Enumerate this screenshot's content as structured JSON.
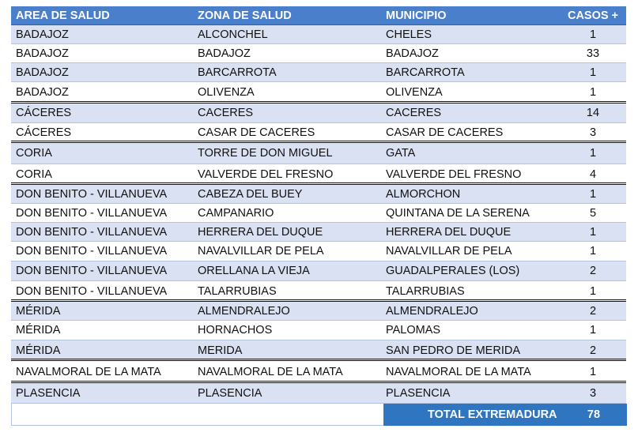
{
  "headers": [
    "AREA DE SALUD",
    "ZONA DE SALUD",
    "MUNICIPIO",
    "CASOS +"
  ],
  "rows": [
    {
      "area": "BADAJOZ",
      "zona": "ALCONCHEL",
      "municipio": "CHELES",
      "casos": "1"
    },
    {
      "area": "BADAJOZ",
      "zona": "BADAJOZ",
      "municipio": "BADAJOZ",
      "casos": "33"
    },
    {
      "area": "BADAJOZ",
      "zona": "BARCARROTA",
      "municipio": "BARCARROTA",
      "casos": "1"
    },
    {
      "area": "BADAJOZ",
      "zona": "OLIVENZA",
      "municipio": "OLIVENZA",
      "casos": "1"
    },
    {
      "area": "CÁCERES",
      "zona": "CACERES",
      "municipio": "CACERES",
      "casos": "14"
    },
    {
      "area": "CÁCERES",
      "zona": "CASAR DE CACERES",
      "municipio": "CASAR DE CACERES",
      "casos": "3"
    },
    {
      "area": "CORIA",
      "zona": "TORRE DE DON MIGUEL",
      "municipio": "GATA",
      "casos": "1"
    },
    {
      "area": "CORIA",
      "zona": "VALVERDE DEL FRESNO",
      "municipio": "VALVERDE DEL FRESNO",
      "casos": "4"
    },
    {
      "area": "DON BENITO - VILLANUEVA",
      "zona": "CABEZA DEL BUEY",
      "municipio": "ALMORCHON",
      "casos": "1"
    },
    {
      "area": "DON BENITO - VILLANUEVA",
      "zona": "CAMPANARIO",
      "municipio": "QUINTANA DE LA SERENA",
      "casos": "5"
    },
    {
      "area": "DON BENITO - VILLANUEVA",
      "zona": "HERRERA DEL DUQUE",
      "municipio": "HERRERA DEL DUQUE",
      "casos": "1"
    },
    {
      "area": "DON BENITO - VILLANUEVA",
      "zona": "NAVALVILLAR DE PELA",
      "municipio": "NAVALVILLAR DE PELA",
      "casos": "1"
    },
    {
      "area": "DON BENITO - VILLANUEVA",
      "zona": "ORELLANA LA VIEJA",
      "municipio": "GUADALPERALES (LOS)",
      "casos": "2"
    },
    {
      "area": "DON BENITO - VILLANUEVA",
      "zona": "TALARRUBIAS",
      "municipio": "TALARRUBIAS",
      "casos": "1"
    },
    {
      "area": "MÉRIDA",
      "zona": "ALMENDRALEJO",
      "municipio": "ALMENDRALEJO",
      "casos": "2"
    },
    {
      "area": "MÉRIDA",
      "zona": "HORNACHOS",
      "municipio": "PALOMAS",
      "casos": "1"
    },
    {
      "area": "MÉRIDA",
      "zona": "MERIDA",
      "municipio": "SAN PEDRO DE MERIDA",
      "casos": "2"
    },
    {
      "area": "NAVALMORAL DE LA MATA",
      "zona": "NAVALMORAL DE LA MATA",
      "municipio": "NAVALMORAL DE LA MATA",
      "casos": "1"
    },
    {
      "area": "PLASENCIA",
      "zona": "PLASENCIA",
      "municipio": "PLASENCIA",
      "casos": "3"
    }
  ],
  "total": {
    "label": "TOTAL EXTREMADURA",
    "value": "78"
  },
  "colors": {
    "header_bg": "#4a7fcb",
    "band_bg": "#d9e1f2",
    "total_bg": "#2f75c0",
    "text": "#111111"
  }
}
